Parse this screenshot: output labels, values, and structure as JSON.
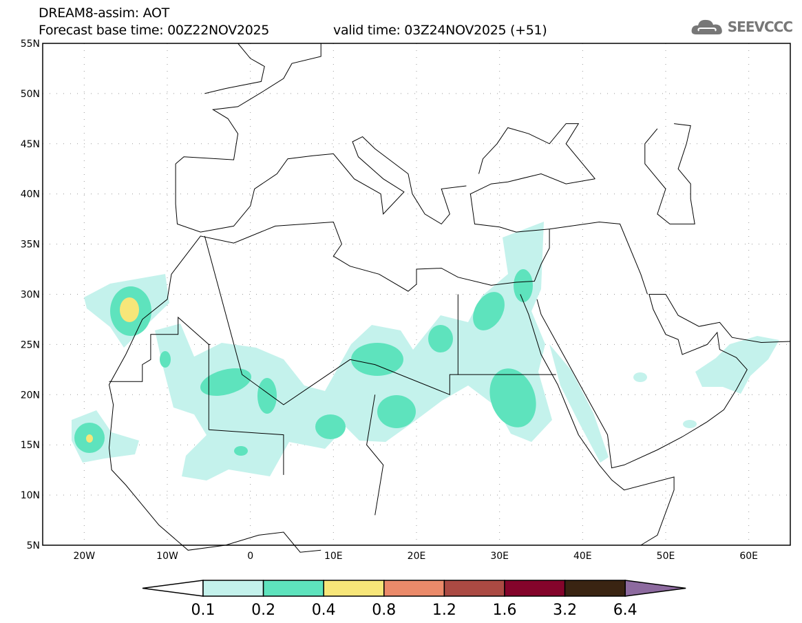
{
  "header": {
    "title": "DREAM8-assim: AOT",
    "base_time": "Forecast base time: 00Z22NOV2025",
    "valid_time": "valid time: 03Z24NOV2025 (+51)",
    "logo_text": "SEEVCCC"
  },
  "map": {
    "lon_range": [
      -25,
      65
    ],
    "lat_range": [
      5,
      55
    ],
    "lat_labels": [
      {
        "v": 55,
        "t": "55N"
      },
      {
        "v": 50,
        "t": "50N"
      },
      {
        "v": 45,
        "t": "45N"
      },
      {
        "v": 40,
        "t": "40N"
      },
      {
        "v": 35,
        "t": "35N"
      },
      {
        "v": 30,
        "t": "30N"
      },
      {
        "v": 25,
        "t": "25N"
      },
      {
        "v": 20,
        "t": "20N"
      },
      {
        "v": 15,
        "t": "15N"
      },
      {
        "v": 10,
        "t": "10N"
      },
      {
        "v": 5,
        "t": "5N"
      }
    ],
    "lon_labels": [
      {
        "v": -20,
        "t": "20W"
      },
      {
        "v": -10,
        "t": "10W"
      },
      {
        "v": 0,
        "t": "0"
      },
      {
        "v": 10,
        "t": "10E"
      },
      {
        "v": 20,
        "t": "20E"
      },
      {
        "v": 30,
        "t": "30E"
      },
      {
        "v": 40,
        "t": "40E"
      },
      {
        "v": 50,
        "t": "50E"
      },
      {
        "v": 60,
        "t": "60E"
      }
    ]
  },
  "colorbar": {
    "labels": [
      "0.1",
      "0.2",
      "0.4",
      "0.8",
      "1.2",
      "1.6",
      "3.2",
      "6.4"
    ],
    "colors": [
      "#c4f2ec",
      "#5ee3bd",
      "#f7e679",
      "#eb8a6a",
      "#ab4a43",
      "#84042b",
      "#3a2412"
    ],
    "under_color": "#ffffff",
    "over_color": "#8d6a9f"
  }
}
